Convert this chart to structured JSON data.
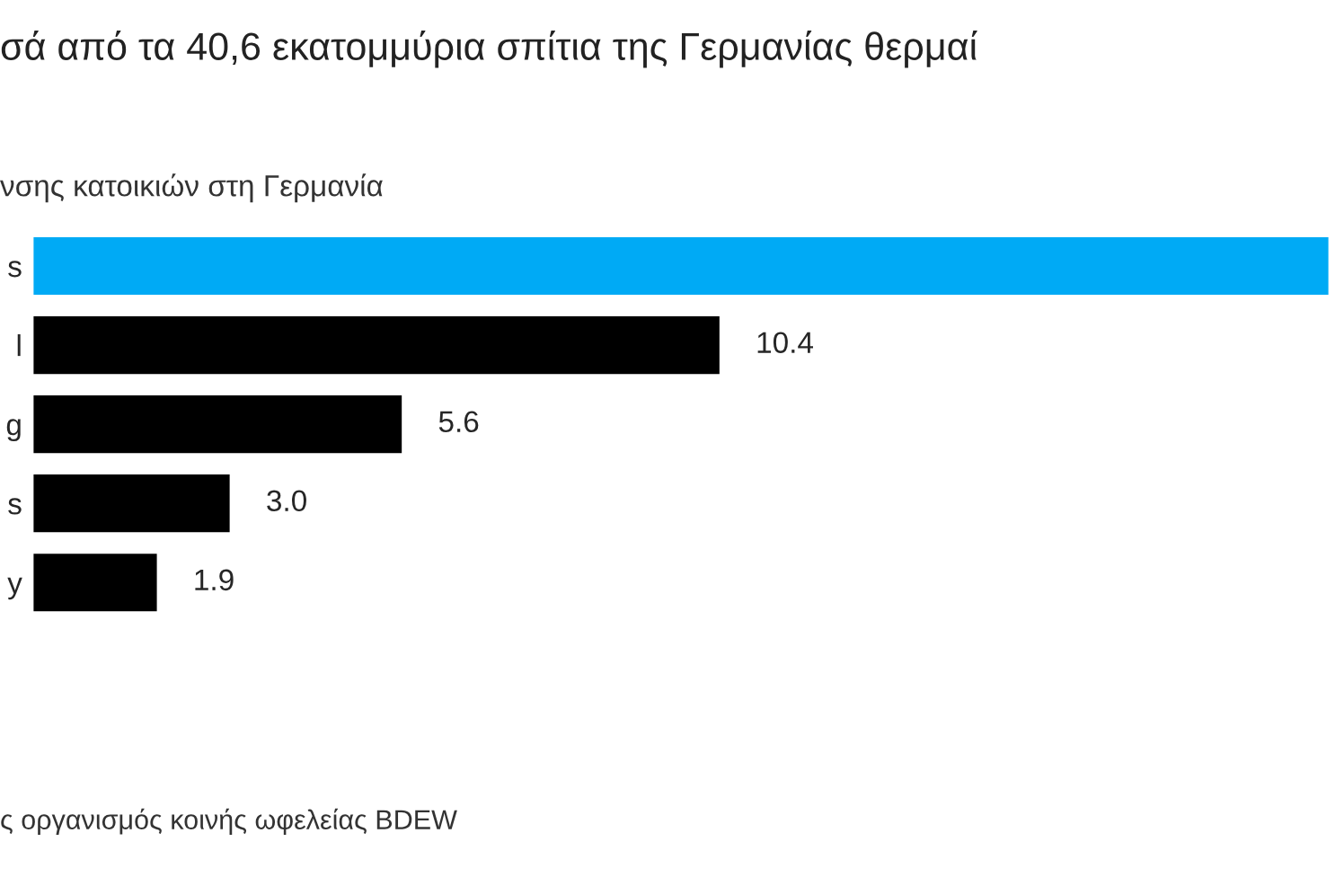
{
  "chart_data": {
    "type": "bar",
    "orientation": "horizontal",
    "title": "σά από τα 40,6 εκατομμύρια σπίτια της Γερμανίας θερμαί",
    "subtitle": "νσης κατοικιών στη Γερμανία",
    "categories": [
      "s",
      "l",
      "g",
      "s",
      "y"
    ],
    "values": [
      19.6,
      10.4,
      5.6,
      3.0,
      1.9
    ],
    "value_labels": [
      null,
      "10.4",
      "5.6",
      "3.0",
      "1.9"
    ],
    "colors": [
      "#00aaf5",
      "#000000",
      "#000000",
      "#000000",
      "#000000"
    ],
    "annotations": [
      "ς οργανισμός κοινής ωφελείας BDEW"
    ],
    "grid": false,
    "legend": false
  }
}
